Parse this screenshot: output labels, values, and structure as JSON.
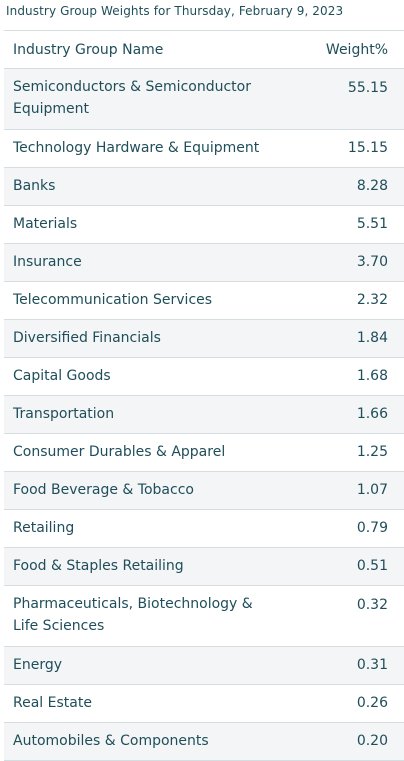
{
  "caption": "Industry Group Weights for Thursday, February 9, 2023",
  "table": {
    "headers": {
      "name": "Industry Group Name",
      "weight": "Weight%"
    },
    "rows": [
      {
        "name": "Semiconductors & Semiconductor Equipment",
        "weight": "55.15"
      },
      {
        "name": "Technology Hardware & Equipment",
        "weight": "15.15"
      },
      {
        "name": "Banks",
        "weight": "8.28"
      },
      {
        "name": "Materials",
        "weight": "5.51"
      },
      {
        "name": "Insurance",
        "weight": "3.70"
      },
      {
        "name": "Telecommunication Services",
        "weight": "2.32"
      },
      {
        "name": "Diversified Financials",
        "weight": "1.84"
      },
      {
        "name": "Capital Goods",
        "weight": "1.68"
      },
      {
        "name": "Transportation",
        "weight": "1.66"
      },
      {
        "name": "Consumer Durables & Apparel",
        "weight": "1.25"
      },
      {
        "name": "Food Beverage & Tobacco",
        "weight": "1.07"
      },
      {
        "name": "Retailing",
        "weight": "0.79"
      },
      {
        "name": "Food & Staples Retailing",
        "weight": "0.51"
      },
      {
        "name": "Pharmaceuticals, Biotechnology & Life Sciences",
        "weight": "0.32"
      },
      {
        "name": "Energy",
        "weight": "0.31"
      },
      {
        "name": "Real Estate",
        "weight": "0.26"
      },
      {
        "name": "Automobiles & Components",
        "weight": "0.20"
      }
    ]
  },
  "colors": {
    "text": "#1f4e5a",
    "stripe": "#f4f5f6",
    "border": "#d6dde0"
  }
}
